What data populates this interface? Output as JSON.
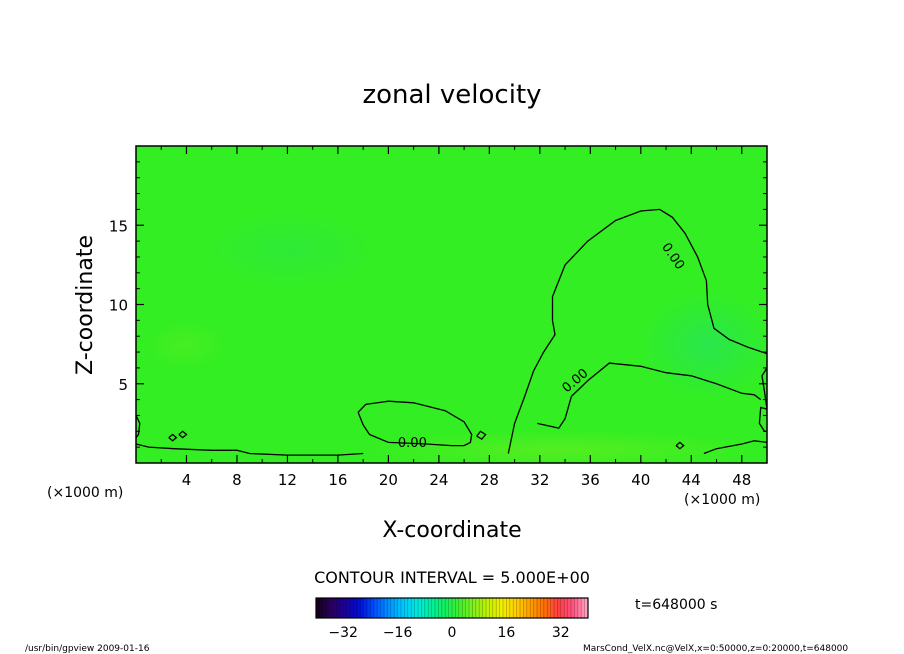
{
  "chart_data": {
    "type": "heatmap",
    "title": "zonal velocity",
    "xlabel": "X-coordinate",
    "ylabel": "Z-coordinate",
    "x_unit_label": "(×1000 m)",
    "y_unit_label": "(×1000 m)",
    "xlim": [
      0,
      50
    ],
    "ylim": [
      0,
      20
    ],
    "x_ticks": [
      4,
      8,
      12,
      16,
      20,
      24,
      28,
      32,
      36,
      40,
      44,
      48
    ],
    "x_tick_labels": [
      "4",
      "8",
      "12",
      "16",
      "20",
      "24",
      "28",
      "32",
      "36",
      "40",
      "44",
      "48"
    ],
    "y_ticks": [
      5,
      10,
      15
    ],
    "y_tick_labels": [
      "5",
      "10",
      "15"
    ],
    "grid": false,
    "fill_color": "#33ee22",
    "contour_interval_text": "CONTOUR INTERVAL = 5.000E+00",
    "time_text": "t=648000 s",
    "contour_labels": [
      {
        "text": "0.00",
        "x": 42.3,
        "y": 12.9
      },
      {
        "text": "0.00",
        "x": 35.0,
        "y": 5.0
      },
      {
        "text": "0.00",
        "x": 21.9,
        "y": 1.0
      }
    ],
    "contours": [
      {
        "level": 0,
        "points": [
          [
            0.0,
            1.2
          ],
          [
            1.0,
            1.0
          ],
          [
            3.0,
            0.9
          ],
          [
            6.0,
            0.8
          ],
          [
            8.0,
            0.8
          ],
          [
            9.0,
            0.6
          ],
          [
            12.0,
            0.5
          ],
          [
            16.0,
            0.5
          ],
          [
            18.0,
            0.6
          ]
        ]
      },
      {
        "level": 0,
        "points": [
          [
            17.6,
            3.2
          ],
          [
            18.2,
            3.7
          ],
          [
            20.0,
            3.9
          ],
          [
            22.0,
            3.8
          ],
          [
            24.5,
            3.3
          ],
          [
            26.0,
            2.6
          ],
          [
            26.6,
            1.8
          ],
          [
            26.5,
            1.3
          ],
          [
            26.0,
            1.1
          ],
          [
            25.0,
            1.1
          ],
          [
            23.0,
            1.2
          ],
          [
            20.0,
            1.3
          ],
          [
            18.5,
            1.8
          ],
          [
            18.0,
            2.4
          ],
          [
            17.6,
            3.2
          ]
        ]
      },
      {
        "level": 0,
        "points": [
          [
            29.5,
            0.6
          ],
          [
            30.0,
            2.5
          ],
          [
            30.8,
            4.2
          ],
          [
            31.5,
            5.8
          ],
          [
            32.3,
            7.0
          ],
          [
            33.2,
            8.1
          ],
          [
            33.0,
            9.0
          ],
          [
            33.0,
            10.5
          ],
          [
            34.0,
            12.5
          ],
          [
            35.8,
            14.0
          ],
          [
            38.0,
            15.3
          ],
          [
            40.0,
            15.9
          ],
          [
            41.5,
            16.0
          ],
          [
            42.5,
            15.5
          ],
          [
            43.5,
            14.5
          ],
          [
            44.5,
            13.0
          ],
          [
            45.2,
            11.5
          ],
          [
            45.3,
            10.0
          ],
          [
            45.8,
            8.5
          ],
          [
            47.0,
            7.8
          ],
          [
            48.5,
            7.3
          ],
          [
            50.0,
            6.9
          ]
        ]
      },
      {
        "level": 0,
        "points": [
          [
            50.0,
            6.0
          ],
          [
            49.6,
            5.5
          ],
          [
            49.8,
            4.5
          ],
          [
            50.0,
            3.4
          ]
        ]
      },
      {
        "level": 0,
        "points": [
          [
            50.0,
            3.4
          ],
          [
            49.5,
            3.5
          ],
          [
            49.4,
            2.5
          ],
          [
            49.8,
            2.0
          ],
          [
            50.0,
            2.0
          ]
        ]
      },
      {
        "level": 0,
        "points": [
          [
            34.5,
            4.2
          ],
          [
            35.8,
            5.2
          ],
          [
            37.5,
            6.3
          ],
          [
            40.0,
            6.1
          ],
          [
            42.0,
            5.7
          ],
          [
            44.0,
            5.5
          ],
          [
            46.0,
            5.0
          ],
          [
            48.0,
            4.4
          ],
          [
            49.0,
            4.3
          ],
          [
            49.5,
            4.0
          ]
        ]
      },
      {
        "level": 0,
        "points": [
          [
            34.5,
            4.2
          ],
          [
            34.0,
            2.8
          ],
          [
            33.5,
            2.2
          ],
          [
            31.8,
            2.5
          ]
        ]
      },
      {
        "level": 0,
        "points": [
          [
            45.0,
            0.6
          ],
          [
            46.0,
            0.9
          ],
          [
            48.0,
            1.2
          ],
          [
            49.0,
            1.4
          ],
          [
            50.0,
            1.3
          ]
        ]
      },
      {
        "level": 0,
        "points": [
          [
            42.8,
            1.1
          ],
          [
            43.1,
            1.3
          ],
          [
            43.4,
            1.1
          ],
          [
            43.1,
            0.9
          ],
          [
            42.8,
            1.1
          ]
        ]
      },
      {
        "level": 0,
        "points": [
          [
            0.0,
            3.0
          ],
          [
            0.3,
            2.5
          ],
          [
            0.2,
            1.8
          ],
          [
            0.0,
            1.6
          ]
        ]
      },
      {
        "level": 0,
        "points": [
          [
            2.6,
            1.6
          ],
          [
            2.9,
            1.8
          ],
          [
            3.2,
            1.6
          ],
          [
            2.9,
            1.4
          ],
          [
            2.6,
            1.6
          ]
        ]
      },
      {
        "level": 0,
        "points": [
          [
            3.4,
            1.8
          ],
          [
            3.7,
            2.0
          ],
          [
            4.0,
            1.8
          ],
          [
            3.7,
            1.6
          ],
          [
            3.4,
            1.8
          ]
        ]
      },
      {
        "level": 0,
        "points": [
          [
            27.0,
            1.7
          ],
          [
            27.3,
            2.0
          ],
          [
            27.7,
            1.8
          ],
          [
            27.4,
            1.5
          ],
          [
            27.0,
            1.7
          ]
        ]
      }
    ],
    "colorbar": {
      "ticks": [
        -32,
        -16,
        0,
        16,
        32
      ],
      "tick_labels": [
        "−32",
        "−16",
        "0",
        "16",
        "32"
      ],
      "range": [
        -40,
        40
      ],
      "colors": [
        "#150020",
        "#2a0060",
        "#1a00a0",
        "#0010d8",
        "#0050ff",
        "#0090ff",
        "#00c8ff",
        "#00e8e0",
        "#00f0a0",
        "#10f060",
        "#40f030",
        "#80f020",
        "#c0f000",
        "#f0f000",
        "#ffd000",
        "#ffa000",
        "#ff7000",
        "#ff4040",
        "#ff5080",
        "#ffa0c0"
      ]
    }
  },
  "footer": {
    "left_text": "/usr/bin/gpview  2009-01-16",
    "right_text": "MarsCond_VelX.nc@VelX,x=0:50000,z=0:20000,t=648000"
  }
}
